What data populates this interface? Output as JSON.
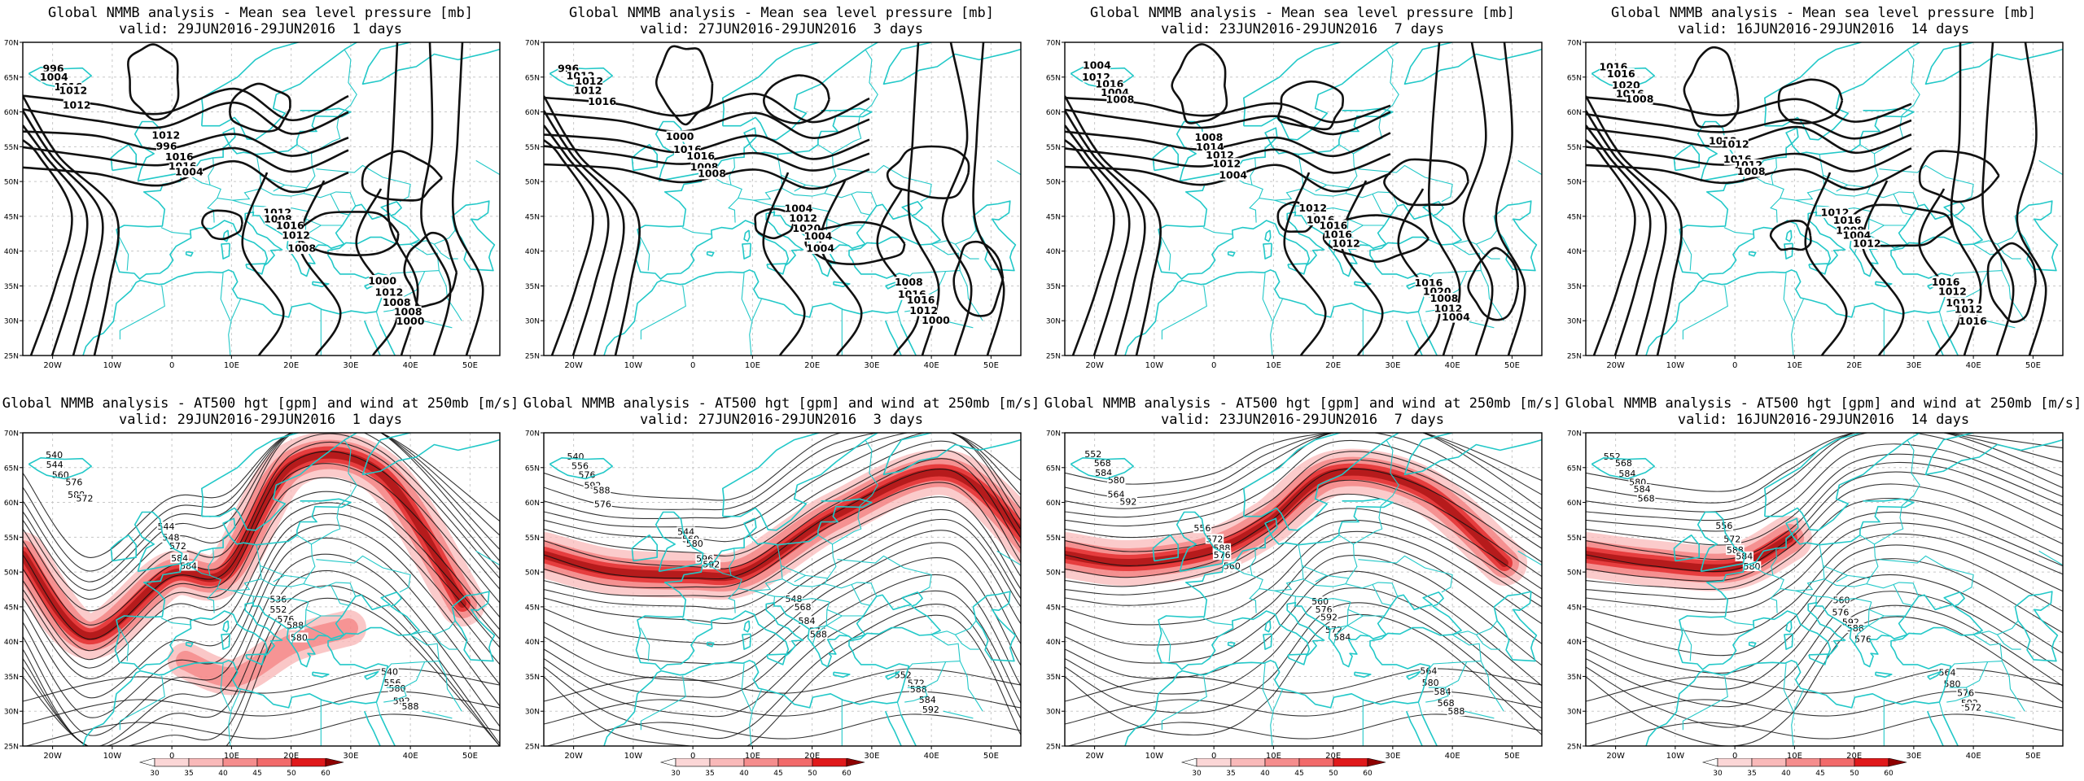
{
  "colors": {
    "coast": "#22c8c8",
    "contour": "#111111",
    "grid": "#c8c8c8",
    "wind_light": "#f9b9b9",
    "wind_mid": "#f26a6a",
    "wind_strong": "#e0191b",
    "wind_max": "#8e0000"
  },
  "axes": {
    "lat_labels": [
      "70N",
      "65N",
      "60N",
      "55N",
      "50N",
      "45N",
      "40N",
      "35N",
      "30N",
      "25N"
    ],
    "lon_labels": [
      "20W",
      "10W",
      "0",
      "10E",
      "20E",
      "30E",
      "40E",
      "50E"
    ]
  },
  "colorbar": {
    "labels": [
      "30",
      "35",
      "40",
      "45",
      "50",
      "60"
    ]
  },
  "panels": [
    {
      "id": "mslp-1",
      "line1": "Global NMMB analysis - Mean sea level pressure [mb]",
      "line2": "valid: 29JUN2016-29JUN2016  1 days",
      "kind": "mslp",
      "contour_labels": [
        "996",
        "1012",
        "1012",
        "1000",
        "1004",
        "996",
        "1008",
        "1012",
        "1016",
        "1016",
        "1016",
        "1008",
        "1012",
        "1016",
        "1012",
        "1008",
        "1012",
        "1004",
        "1008",
        "1000"
      ]
    },
    {
      "id": "mslp-3",
      "line1": "Global NMMB analysis - Mean sea level pressure [mb]",
      "line2": "valid: 27JUN2016-29JUN2016  3 days",
      "kind": "mslp",
      "contour_labels": [
        "996",
        "1000",
        "1004",
        "1008",
        "1012",
        "1016",
        "1012",
        "1016",
        "1012",
        "1016",
        "1020",
        "1016",
        "1012",
        "1008",
        "1004",
        "1012",
        "1016",
        "1008",
        "1004",
        "1000"
      ]
    },
    {
      "id": "mslp-7",
      "line1": "Global NMMB analysis - Mean sea level pressure [mb]",
      "line2": "valid: 23JUN2016-29JUN2016  7 days",
      "kind": "mslp",
      "contour_labels": [
        "1004",
        "1008",
        "1012",
        "1016",
        "1012",
        "1014",
        "1016",
        "1020",
        "1016",
        "1012",
        "1016",
        "1008",
        "1004",
        "1012",
        "1016",
        "1012",
        "1008",
        "1004",
        "1012",
        "1004"
      ]
    },
    {
      "id": "mslp-14",
      "line1": "Global NMMB analysis - Mean sea level pressure [mb]",
      "line2": "valid: 16JUN2016-29JUN2016  14 days",
      "kind": "mslp",
      "contour_labels": [
        "1016",
        "1012",
        "1012",
        "1016",
        "1016",
        "1012",
        "1016",
        "1012",
        "1020",
        "1016",
        "1008",
        "1012",
        "1016",
        "1012",
        "1004",
        "1012",
        "1008",
        "1008",
        "1012",
        "1016"
      ]
    },
    {
      "id": "z500-1",
      "line1": "Global NMMB analysis - AT500 hgt [gpm] and wind at 250mb [m/s]",
      "line2": "valid: 29JUN2016-29JUN2016  1 days",
      "kind": "z500",
      "contour_labels": [
        "540",
        "544",
        "536",
        "540",
        "544",
        "548",
        "552",
        "556",
        "560",
        "572",
        "576",
        "580",
        "576",
        "584",
        "588",
        "592",
        "588",
        "584",
        "580",
        "588",
        "572"
      ]
    },
    {
      "id": "z500-3",
      "line1": "Global NMMB analysis - AT500 hgt [gpm] and wind at 250mb [m/s]",
      "line2": "valid: 27JUN2016-29JUN2016  3 days",
      "kind": "z500",
      "contour_labels": [
        "540",
        "544",
        "548",
        "552",
        "556",
        "560",
        "568",
        "572",
        "576",
        "580",
        "584",
        "588",
        "592",
        "596",
        "576",
        "584",
        "588",
        "592",
        "588",
        "592",
        "576"
      ]
    },
    {
      "id": "z500-7",
      "line1": "Global NMMB analysis - AT500 hgt [gpm] and wind at 250mb [m/s]",
      "line2": "valid: 23JUN2016-29JUN2016  7 days",
      "kind": "z500",
      "contour_labels": [
        "552",
        "556",
        "560",
        "564",
        "568",
        "572",
        "576",
        "580",
        "584",
        "588",
        "592",
        "584",
        "580",
        "576",
        "572",
        "568",
        "564",
        "560",
        "584",
        "588",
        "592"
      ]
    },
    {
      "id": "z500-14",
      "line1": "Global NMMB analysis - AT500 hgt [gpm] and wind at 250mb [m/s]",
      "line2": "valid: 16JUN2016-29JUN2016  14 days",
      "kind": "z500",
      "contour_labels": [
        "552",
        "556",
        "560",
        "564",
        "568",
        "572",
        "576",
        "580",
        "584",
        "588",
        "592",
        "576",
        "580",
        "584",
        "588",
        "592",
        "584",
        "580",
        "576",
        "572",
        "568"
      ]
    }
  ]
}
